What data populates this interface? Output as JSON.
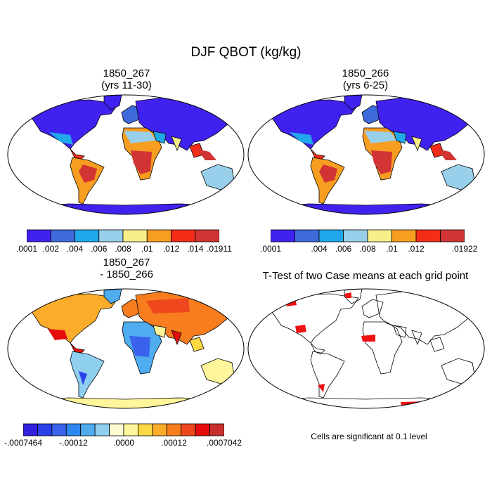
{
  "figure": {
    "title": "DJF QBOT (kg/kg)",
    "footnote": "Cells are significant at 0.1 level"
  },
  "colors": {
    "abs_palette": [
      "#4022f0",
      "#3f6adc",
      "#20a8ea",
      "#98cfea",
      "#f9ef8a",
      "#f79d20",
      "#f52c18",
      "#d23434"
    ],
    "diff_palette": [
      "#3220dd",
      "#2a40e8",
      "#3a62ec",
      "#2b86ee",
      "#4eacef",
      "#8ecff0",
      "#fffbd2",
      "#fff59a",
      "#fcd845",
      "#fbac2a",
      "#f77d1f",
      "#ee471d",
      "#e60c0c",
      "#c83030"
    ],
    "land_outline": "#000000",
    "significant": "#ee1111"
  },
  "chart_data": [
    {
      "type": "heatmap",
      "title": "1850_267",
      "subtitle": "(yrs 11-30)",
      "colorbar_ticks": [
        ".0001",
        ".002",
        ".004",
        ".006",
        ".008",
        ".01",
        ".012",
        ".014",
        ".01911"
      ],
      "colorbar_range": [
        0.0001,
        0.01911
      ]
    },
    {
      "type": "heatmap",
      "title": "1850_266",
      "subtitle": "(yrs 6-25)",
      "colorbar_ticks": [
        ".0001",
        "",
        ".004",
        ".006",
        ".008",
        ".01",
        ".012",
        "",
        ".01922"
      ],
      "colorbar_range": [
        0.0001,
        0.01922
      ]
    },
    {
      "type": "heatmap",
      "title": "1850_267",
      "subtitle": "- 1850_266",
      "colorbar_ticks": [
        "-.0007464",
        "-.00012",
        ".0000",
        ".00012",
        ".0007042"
      ],
      "colorbar_range": [
        -0.0007464,
        0.0007042
      ]
    },
    {
      "type": "heatmap",
      "title": "T-Test of two Case means at each grid point",
      "subtitle": ""
    }
  ]
}
